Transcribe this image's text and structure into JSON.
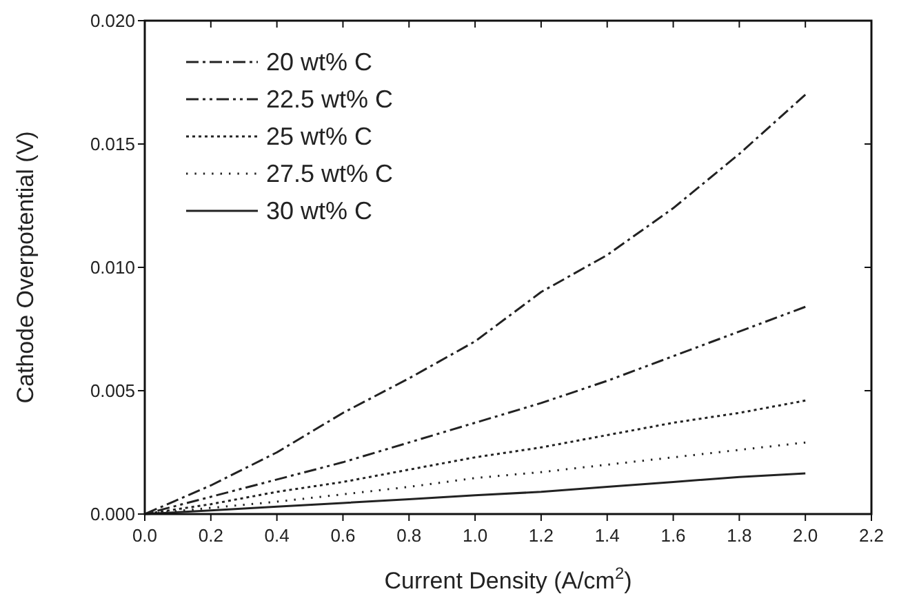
{
  "chart_data": {
    "type": "line",
    "xlabel": "Current Density (A/cm$^{2}$)",
    "ylabel": "Cathode Overpotential (V)",
    "xlim": [
      0,
      2.2
    ],
    "ylim": [
      0,
      0.02
    ],
    "xticks": [
      {
        "value": 0,
        "label": "0.0"
      },
      0.2,
      0.4,
      0.6,
      0.8,
      {
        "value": 1,
        "label": "1.0"
      },
      1.2,
      1.4,
      1.6,
      1.8,
      {
        "value": 2,
        "label": "2.0"
      },
      2.2
    ],
    "yticks": [
      {
        "value": 0,
        "label": "0.000"
      },
      0.005,
      {
        "value": 0.01,
        "label": "0.010"
      },
      0.015,
      {
        "value": 0.02,
        "label": "0.020"
      }
    ],
    "grid": false,
    "legend": "top left",
    "marker": "none",
    "x": [
      0,
      0.2,
      0.4,
      0.6,
      0.8,
      1.0,
      1.2,
      1.4,
      1.6,
      1.8,
      2.0
    ],
    "series": [
      {
        "name": "20 wt% C",
        "color": "#222222",
        "line_style": "dashdot",
        "values": [
          0,
          0.00116,
          0.0025,
          0.0041,
          0.0055,
          0.007,
          0.009,
          0.0105,
          0.0124,
          0.0146,
          0.017
        ]
      },
      {
        "name": "22.5 wt% C",
        "color": "#222222",
        "line_style": "dashdotdot",
        "values": [
          0,
          0.0007,
          0.0014,
          0.0021,
          0.0029,
          0.0037,
          0.0045,
          0.0054,
          0.0064,
          0.0074,
          0.0084
        ]
      },
      {
        "name": "25 wt% C",
        "color": "#222222",
        "line_style": "dotted",
        "values": [
          0,
          0.0004,
          0.0009,
          0.0013,
          0.0018,
          0.0023,
          0.0027,
          0.0032,
          0.0037,
          0.0041,
          0.0046
        ]
      },
      {
        "name": "27.5 wt% C",
        "color": "#222222",
        "line_style": "loosedotted",
        "values": [
          0,
          0.00025,
          0.0005,
          0.0008,
          0.0011,
          0.00146,
          0.0017,
          0.002,
          0.0023,
          0.0026,
          0.0029
        ]
      },
      {
        "name": "30 wt% C",
        "color": "#222222",
        "line_style": "solid",
        "values": [
          0,
          0.00015,
          0.0003,
          0.00045,
          0.0006,
          0.00076,
          0.0009,
          0.0011,
          0.0013,
          0.0015,
          0.00165
        ]
      }
    ]
  }
}
